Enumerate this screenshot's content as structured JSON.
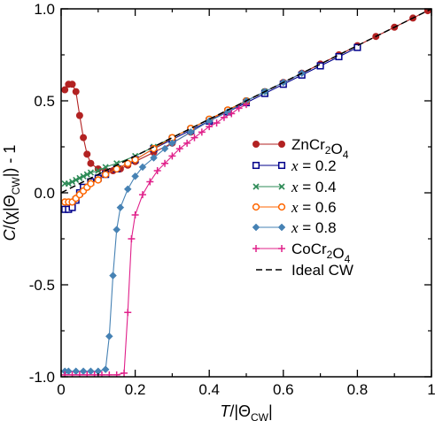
{
  "chart_data": {
    "type": "scatter",
    "xlabel": "T/|Θ",
    "xlabel_sub": "CW",
    "xlabel_end": "|",
    "ylabel": "C/(χ|Θ",
    "ylabel_sub": "CW",
    "ylabel_end": "|) - 1",
    "xlim": [
      0,
      1
    ],
    "ylim": [
      -1,
      1
    ],
    "xticks": [
      0,
      0.2,
      0.4,
      0.6,
      0.8,
      1
    ],
    "xtick_labels": [
      "0",
      "0.2",
      "0.4",
      "0.6",
      "0.8",
      "1"
    ],
    "yticks": [
      -1,
      -0.5,
      0,
      0.5,
      1
    ],
    "ytick_labels": [
      "-1.0",
      "-0.5",
      "0.0",
      "0.5",
      "1.0"
    ],
    "grid": false,
    "legend_position": "right",
    "series": [
      {
        "name": "ZnCr2O4",
        "label_parts": [
          [
            "ZnCr",
            false
          ],
          [
            "2",
            true
          ],
          [
            "O",
            false
          ],
          [
            "4",
            true
          ]
        ],
        "color": "#b22222",
        "marker": "circle-filled",
        "points": [
          [
            0.01,
            0.56
          ],
          [
            0.02,
            0.59
          ],
          [
            0.03,
            0.59
          ],
          [
            0.04,
            0.55
          ],
          [
            0.05,
            0.42
          ],
          [
            0.06,
            0.3
          ],
          [
            0.07,
            0.21
          ],
          [
            0.08,
            0.16
          ],
          [
            0.1,
            0.13
          ],
          [
            0.12,
            0.12
          ],
          [
            0.14,
            0.12
          ],
          [
            0.16,
            0.13
          ],
          [
            0.18,
            0.15
          ],
          [
            0.2,
            0.17
          ],
          [
            0.25,
            0.22
          ],
          [
            0.3,
            0.27
          ],
          [
            0.35,
            0.33
          ],
          [
            0.4,
            0.39
          ],
          [
            0.45,
            0.45
          ],
          [
            0.5,
            0.5
          ],
          [
            0.55,
            0.55
          ],
          [
            0.6,
            0.6
          ],
          [
            0.65,
            0.65
          ],
          [
            0.7,
            0.7
          ],
          [
            0.75,
            0.75
          ],
          [
            0.8,
            0.8
          ],
          [
            0.85,
            0.85
          ],
          [
            0.9,
            0.9
          ],
          [
            0.95,
            0.95
          ],
          [
            0.99,
            0.99
          ]
        ]
      },
      {
        "name": "x = 0.2",
        "label_parts": [
          [
            "x",
            "italic"
          ],
          [
            " = 0.2",
            false
          ]
        ],
        "color": "#00008b",
        "marker": "square-open",
        "points": [
          [
            0.01,
            -0.09
          ],
          [
            0.02,
            -0.09
          ],
          [
            0.03,
            -0.08
          ],
          [
            0.04,
            -0.04
          ],
          [
            0.05,
            0.0
          ],
          [
            0.06,
            0.03
          ],
          [
            0.08,
            0.06
          ],
          [
            0.1,
            0.08
          ],
          [
            0.12,
            0.1
          ],
          [
            0.15,
            0.13
          ],
          [
            0.2,
            0.18
          ],
          [
            0.25,
            0.24
          ],
          [
            0.3,
            0.29
          ],
          [
            0.35,
            0.34
          ],
          [
            0.4,
            0.39
          ],
          [
            0.45,
            0.44
          ],
          [
            0.5,
            0.49
          ],
          [
            0.55,
            0.54
          ],
          [
            0.6,
            0.59
          ],
          [
            0.65,
            0.64
          ],
          [
            0.7,
            0.69
          ],
          [
            0.75,
            0.74
          ],
          [
            0.8,
            0.79
          ]
        ]
      },
      {
        "name": "x = 0.4",
        "label_parts": [
          [
            "x",
            "italic"
          ],
          [
            " = 0.4",
            false
          ]
        ],
        "color": "#2e8b57",
        "marker": "x",
        "points": [
          [
            0.01,
            0.05
          ],
          [
            0.02,
            0.05
          ],
          [
            0.03,
            0.06
          ],
          [
            0.04,
            0.07
          ],
          [
            0.05,
            0.08
          ],
          [
            0.06,
            0.09
          ],
          [
            0.07,
            0.1
          ],
          [
            0.08,
            0.11
          ],
          [
            0.1,
            0.12
          ],
          [
            0.12,
            0.14
          ],
          [
            0.15,
            0.16
          ],
          [
            0.2,
            0.2
          ],
          [
            0.25,
            0.25
          ],
          [
            0.3,
            0.3
          ],
          [
            0.35,
            0.35
          ],
          [
            0.4,
            0.4
          ],
          [
            0.45,
            0.45
          ],
          [
            0.5,
            0.5
          ],
          [
            0.55,
            0.55
          ]
        ]
      },
      {
        "name": "x = 0.6",
        "label_parts": [
          [
            "x",
            "italic"
          ],
          [
            " = 0.6",
            false
          ]
        ],
        "color": "#ff6600",
        "marker": "circle-open",
        "points": [
          [
            0.01,
            -0.05
          ],
          [
            0.02,
            -0.05
          ],
          [
            0.03,
            -0.05
          ],
          [
            0.04,
            -0.03
          ],
          [
            0.05,
            -0.01
          ],
          [
            0.06,
            0.01
          ],
          [
            0.07,
            0.03
          ],
          [
            0.08,
            0.05
          ],
          [
            0.1,
            0.07
          ],
          [
            0.12,
            0.1
          ],
          [
            0.15,
            0.13
          ],
          [
            0.18,
            0.16
          ],
          [
            0.2,
            0.18
          ],
          [
            0.25,
            0.24
          ],
          [
            0.3,
            0.3
          ],
          [
            0.35,
            0.35
          ],
          [
            0.4,
            0.4
          ],
          [
            0.45,
            0.45
          ],
          [
            0.5,
            0.5
          ]
        ]
      },
      {
        "name": "x = 0.8",
        "label_parts": [
          [
            "x",
            "italic"
          ],
          [
            " = 0.8",
            false
          ]
        ],
        "color": "#4682b4",
        "marker": "diamond-filled",
        "points": [
          [
            0.01,
            -0.97
          ],
          [
            0.02,
            -0.97
          ],
          [
            0.04,
            -0.97
          ],
          [
            0.06,
            -0.97
          ],
          [
            0.08,
            -0.97
          ],
          [
            0.1,
            -0.97
          ],
          [
            0.12,
            -0.96
          ],
          [
            0.13,
            -0.78
          ],
          [
            0.14,
            -0.45
          ],
          [
            0.15,
            -0.2
          ],
          [
            0.16,
            -0.08
          ],
          [
            0.18,
            0.02
          ],
          [
            0.2,
            0.09
          ],
          [
            0.22,
            0.14
          ],
          [
            0.25,
            0.19
          ],
          [
            0.28,
            0.24
          ],
          [
            0.3,
            0.27
          ],
          [
            0.35,
            0.33
          ],
          [
            0.4,
            0.39
          ],
          [
            0.45,
            0.44
          ],
          [
            0.5,
            0.5
          ],
          [
            0.55,
            0.55
          ],
          [
            0.6,
            0.6
          ],
          [
            0.65,
            0.65
          ]
        ]
      },
      {
        "name": "CoCr2O4",
        "label_parts": [
          [
            "CoCr",
            false
          ],
          [
            "2",
            true
          ],
          [
            "O",
            false
          ],
          [
            "4",
            true
          ]
        ],
        "color": "#e0208a",
        "marker": "plus",
        "points": [
          [
            0.01,
            -0.99
          ],
          [
            0.03,
            -0.99
          ],
          [
            0.05,
            -0.99
          ],
          [
            0.07,
            -0.99
          ],
          [
            0.09,
            -0.99
          ],
          [
            0.11,
            -0.99
          ],
          [
            0.13,
            -0.99
          ],
          [
            0.15,
            -0.99
          ],
          [
            0.17,
            -0.98
          ],
          [
            0.18,
            -0.65
          ],
          [
            0.19,
            -0.25
          ],
          [
            0.2,
            -0.12
          ],
          [
            0.22,
            -0.01
          ],
          [
            0.24,
            0.06
          ],
          [
            0.26,
            0.12
          ],
          [
            0.28,
            0.16
          ],
          [
            0.3,
            0.2
          ],
          [
            0.32,
            0.24
          ],
          [
            0.34,
            0.27
          ],
          [
            0.36,
            0.3
          ],
          [
            0.38,
            0.33
          ],
          [
            0.4,
            0.36
          ],
          [
            0.42,
            0.38
          ],
          [
            0.44,
            0.41
          ],
          [
            0.46,
            0.43
          ],
          [
            0.48,
            0.46
          ],
          [
            0.5,
            0.48
          ]
        ]
      },
      {
        "name": "Ideal CW",
        "label_parts": [
          [
            "Ideal CW",
            false
          ]
        ],
        "color": "#000000",
        "marker": "dashed-line",
        "points": [
          [
            0,
            0
          ],
          [
            1,
            1
          ]
        ]
      }
    ]
  }
}
